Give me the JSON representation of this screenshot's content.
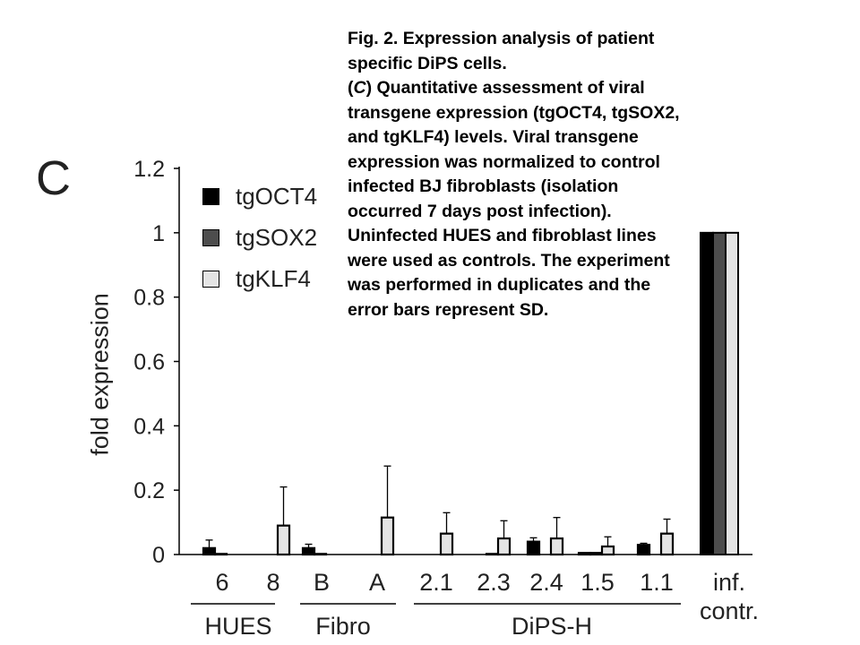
{
  "caption": {
    "line1": "Fig. 2. Expression analysis of patient specific DiPS cells.",
    "line2_open": "(",
    "line2_italic": "C",
    "line2_rest": ") Quantitative assessment of viral transgene expression (tgOCT4, tgSOX2, and tgKLF4) levels. Viral transgene expression was normalized to control infected BJ fibroblasts (isolation occurred 7 days post infection). Uninfected HUES and fibroblast lines were used as controls. The experiment was performed in duplicates and the error bars represent SD."
  },
  "panel_letter": "C",
  "colors": {
    "tgOCT4": "#000000",
    "tgSOX2": "#4d4d4d",
    "tgKLF4": "#e4e4e4"
  },
  "chart_data": {
    "type": "bar",
    "ylabel": "fold expression",
    "ylim": [
      0,
      1.2
    ],
    "yticks": [
      "0",
      "0.2",
      "0.4",
      "0.6",
      "0.8",
      "1",
      "1.2"
    ],
    "grid": false,
    "legend_position": "top-left",
    "categories": [
      "6",
      "8",
      "B",
      "A",
      "2.1",
      "2.3",
      "2.4",
      "1.5",
      "1.1",
      "inf.\ncontr."
    ],
    "groups": [
      {
        "label": "HUES",
        "categories": [
          "6",
          "8"
        ]
      },
      {
        "label": "Fibro",
        "categories": [
          "B",
          "A"
        ]
      },
      {
        "label": "DiPS-H",
        "categories": [
          "2.1",
          "2.3",
          "2.4",
          "1.5",
          "1.1"
        ]
      }
    ],
    "series": [
      {
        "name": "tgOCT4",
        "values": [
          0.02,
          0.0,
          0.02,
          0.0,
          0.0,
          0.0,
          0.04,
          0.005,
          0.03,
          1.0
        ],
        "errors": [
          0.025,
          0.0,
          0.012,
          0.0,
          0.0,
          0.0,
          0.012,
          0.0,
          0.005,
          0.0
        ]
      },
      {
        "name": "tgSOX2",
        "values": [
          0.002,
          0.0,
          0.002,
          0.0,
          0.0,
          0.002,
          0.0,
          0.005,
          0.0,
          1.0
        ],
        "errors": [
          0.0,
          0.0,
          0.0,
          0.0,
          0.0,
          0.0,
          0.0,
          0.0,
          0.0,
          0.0
        ]
      },
      {
        "name": "tgKLF4",
        "values": [
          0.0,
          0.09,
          0.0,
          0.115,
          0.065,
          0.05,
          0.05,
          0.025,
          0.065,
          1.0
        ],
        "errors": [
          0.0,
          0.12,
          0.0,
          0.16,
          0.065,
          0.055,
          0.065,
          0.03,
          0.045,
          0.0
        ]
      }
    ]
  }
}
